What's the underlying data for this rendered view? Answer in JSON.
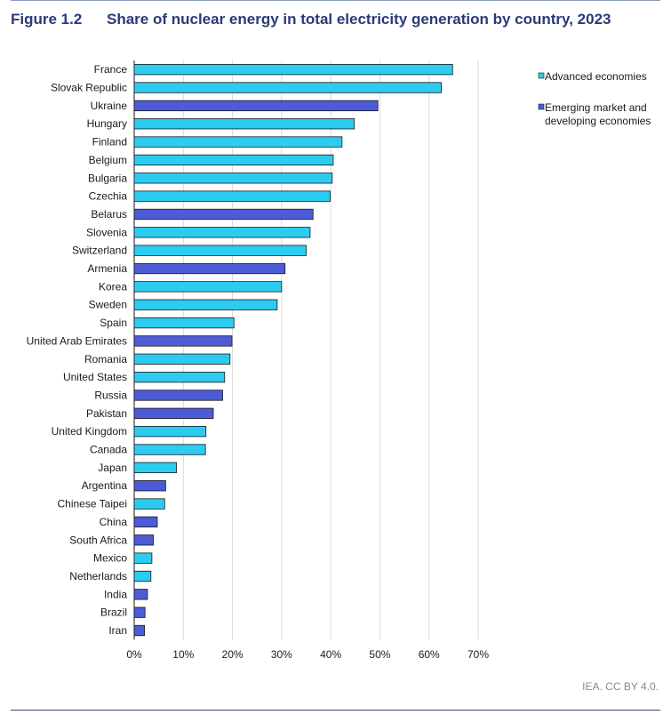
{
  "figure": {
    "number": "Figure 1.2",
    "title": "Share of nuclear energy in total electricity generation by country, 2023",
    "credit": "IEA. CC BY 4.0."
  },
  "colors": {
    "advanced": "#2ccbf0",
    "emerging": "#4d5bd6",
    "bar_stroke": "#1a1a1a",
    "grid": "#d9d9d9",
    "title": "#2b3a78"
  },
  "chart_data": {
    "type": "bar",
    "orientation": "horizontal",
    "xlim": [
      0,
      70
    ],
    "xticks": [
      "0%",
      "10%",
      "20%",
      "30%",
      "40%",
      "50%",
      "60%",
      "70%"
    ],
    "grid": true,
    "legend_position": "top-right",
    "legend": [
      {
        "key": "advanced",
        "label": "Advanced economies"
      },
      {
        "key": "emerging",
        "label": "Emerging market and developing economies"
      }
    ],
    "bars": [
      {
        "country": "France",
        "value": 64.8,
        "group": "advanced"
      },
      {
        "country": "Slovak Republic",
        "value": 62.5,
        "group": "advanced"
      },
      {
        "country": "Ukraine",
        "value": 49.6,
        "group": "emerging"
      },
      {
        "country": "Hungary",
        "value": 44.8,
        "group": "advanced"
      },
      {
        "country": "Finland",
        "value": 42.3,
        "group": "advanced"
      },
      {
        "country": "Belgium",
        "value": 40.5,
        "group": "advanced"
      },
      {
        "country": "Bulgaria",
        "value": 40.3,
        "group": "advanced"
      },
      {
        "country": "Czechia",
        "value": 39.9,
        "group": "advanced"
      },
      {
        "country": "Belarus",
        "value": 36.4,
        "group": "emerging"
      },
      {
        "country": "Slovenia",
        "value": 35.8,
        "group": "advanced"
      },
      {
        "country": "Switzerland",
        "value": 35.0,
        "group": "advanced"
      },
      {
        "country": "Armenia",
        "value": 30.7,
        "group": "emerging"
      },
      {
        "country": "Korea",
        "value": 30.0,
        "group": "advanced"
      },
      {
        "country": "Sweden",
        "value": 29.1,
        "group": "advanced"
      },
      {
        "country": "Spain",
        "value": 20.3,
        "group": "advanced"
      },
      {
        "country": "United Arab Emirates",
        "value": 19.9,
        "group": "emerging"
      },
      {
        "country": "Romania",
        "value": 19.5,
        "group": "advanced"
      },
      {
        "country": "United States",
        "value": 18.4,
        "group": "advanced"
      },
      {
        "country": "Russia",
        "value": 18.0,
        "group": "emerging"
      },
      {
        "country": "Pakistan",
        "value": 16.1,
        "group": "emerging"
      },
      {
        "country": "United Kingdom",
        "value": 14.6,
        "group": "advanced"
      },
      {
        "country": "Canada",
        "value": 14.5,
        "group": "advanced"
      },
      {
        "country": "Japan",
        "value": 8.6,
        "group": "advanced"
      },
      {
        "country": "Argentina",
        "value": 6.4,
        "group": "emerging"
      },
      {
        "country": "Chinese Taipei",
        "value": 6.2,
        "group": "advanced"
      },
      {
        "country": "China",
        "value": 4.7,
        "group": "emerging"
      },
      {
        "country": "South Africa",
        "value": 3.9,
        "group": "emerging"
      },
      {
        "country": "Mexico",
        "value": 3.6,
        "group": "advanced"
      },
      {
        "country": "Netherlands",
        "value": 3.4,
        "group": "advanced"
      },
      {
        "country": "India",
        "value": 2.7,
        "group": "emerging"
      },
      {
        "country": "Brazil",
        "value": 2.2,
        "group": "emerging"
      },
      {
        "country": "Iran",
        "value": 2.1,
        "group": "emerging"
      }
    ]
  }
}
